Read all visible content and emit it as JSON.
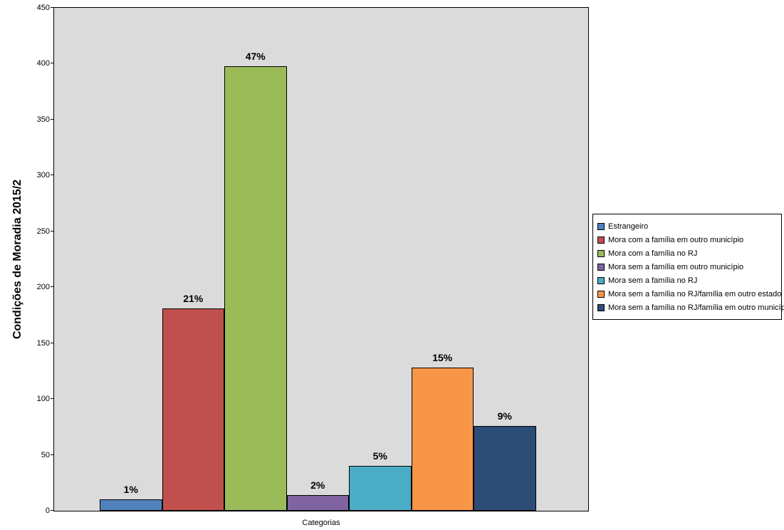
{
  "chart_data": {
    "type": "bar",
    "title": "Condições de Moradia 2015/2",
    "ylabel": "Condições de Moradia 2015/2",
    "xlabel": "Categorias",
    "ylim": [
      0,
      450
    ],
    "yticks": [
      0,
      50,
      100,
      150,
      200,
      250,
      300,
      350,
      400,
      450
    ],
    "grid": false,
    "legend_position": "right",
    "plot_background": "#DBDBDB",
    "categories": [
      "Estrangeiro",
      "Mora com a família em outro município",
      "Mora com a família no RJ",
      "Mora sem a família em outro município",
      "Mora sem a família no RJ",
      "Mora sem a família no RJ/família em outro estado",
      "Mora sem a família no RJ/família em outro município"
    ],
    "values": [
      10,
      181,
      398,
      14,
      40,
      128,
      76
    ],
    "percent_labels": [
      "1%",
      "21%",
      "47%",
      "2%",
      "5%",
      "15%",
      "9%"
    ],
    "colors": [
      "#4F81BD",
      "#C0504D",
      "#9BBB59",
      "#8064A2",
      "#4BACC6",
      "#F79646",
      "#2C4D75"
    ]
  }
}
